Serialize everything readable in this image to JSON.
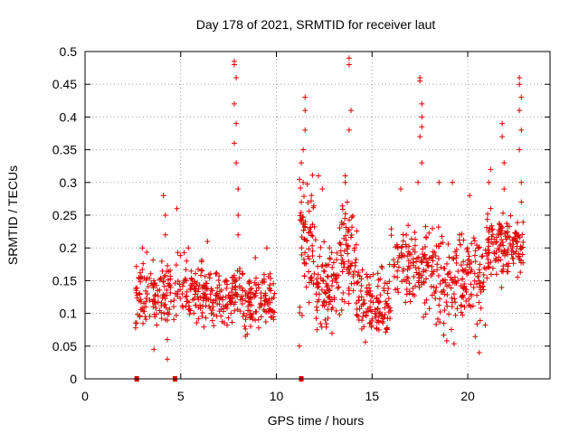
{
  "chart_data": {
    "type": "scatter",
    "title": "Day 178 of 2021, SRMTID for receiver laut",
    "xlabel": "GPS time / hours",
    "ylabel": "SRMTID / TECUs",
    "xlim": [
      0,
      24.3
    ],
    "ylim": [
      0,
      0.5
    ],
    "x_ticks": [
      0,
      5,
      10,
      15,
      20
    ],
    "y_ticks": [
      0,
      0.05,
      0.1,
      0.15,
      0.2,
      0.25,
      0.3,
      0.35,
      0.4,
      0.45,
      0.5
    ],
    "grid": true,
    "marker": "plus",
    "color": "#e00000",
    "zero_points": [
      2.7,
      4.7,
      11.3
    ],
    "clusters": [
      {
        "x_range": [
          2.6,
          4.5
        ],
        "y_range": [
          0.06,
          0.2
        ],
        "count": 120,
        "spikes": [
          [
            3.0,
            0.2
          ],
          [
            4.1,
            0.28
          ],
          [
            4.2,
            0.25
          ],
          [
            4.2,
            0.22
          ],
          [
            4.3,
            0.06
          ],
          [
            4.3,
            0.03
          ],
          [
            3.6,
            0.045
          ]
        ]
      },
      {
        "x_range": [
          4.6,
          6.2
        ],
        "y_range": [
          0.06,
          0.21
        ],
        "count": 90,
        "spikes": [
          [
            4.8,
            0.26
          ],
          [
            5.4,
            0.2
          ]
        ]
      },
      {
        "x_range": [
          6.2,
          7.6
        ],
        "y_range": [
          0.06,
          0.19
        ],
        "count": 85,
        "spikes": [
          [
            6.4,
            0.21
          ]
        ]
      },
      {
        "x_range": [
          7.6,
          8.2
        ],
        "y_range": [
          0.07,
          0.2
        ],
        "count": 40,
        "spikes": [
          [
            7.8,
            0.485
          ],
          [
            7.8,
            0.48
          ],
          [
            7.9,
            0.46
          ],
          [
            7.8,
            0.42
          ],
          [
            7.9,
            0.39
          ],
          [
            7.8,
            0.36
          ],
          [
            7.9,
            0.33
          ],
          [
            8.0,
            0.29
          ],
          [
            8.0,
            0.25
          ],
          [
            8.0,
            0.22
          ]
        ]
      },
      {
        "x_range": [
          8.2,
          9.9
        ],
        "y_range": [
          0.05,
          0.19
        ],
        "count": 110,
        "spikes": [
          [
            9.5,
            0.2
          ],
          [
            8.9,
            0.185
          ]
        ]
      },
      {
        "x_range": [
          11.2,
          12.0
        ],
        "y_range": [
          0.07,
          0.35
        ],
        "count": 70,
        "spikes": [
          [
            11.5,
            0.43
          ],
          [
            11.5,
            0.41
          ],
          [
            11.5,
            0.38
          ],
          [
            11.4,
            0.35
          ],
          [
            11.3,
            0.33
          ],
          [
            11.4,
            0.3
          ],
          [
            11.2,
            0.05
          ]
        ]
      },
      {
        "x_range": [
          12.0,
          13.3
        ],
        "y_range": [
          0.04,
          0.25
        ],
        "count": 90,
        "spikes": [
          [
            12.2,
            0.31
          ],
          [
            12.4,
            0.29
          ]
        ]
      },
      {
        "x_range": [
          13.3,
          14.2
        ],
        "y_range": [
          0.06,
          0.3
        ],
        "count": 70,
        "spikes": [
          [
            13.8,
            0.49
          ],
          [
            13.8,
            0.48
          ],
          [
            13.9,
            0.41
          ],
          [
            13.8,
            0.38
          ],
          [
            13.6,
            0.31
          ],
          [
            13.6,
            0.3
          ],
          [
            13.7,
            0.27
          ]
        ]
      },
      {
        "x_range": [
          14.2,
          16.0
        ],
        "y_range": [
          0.04,
          0.2
        ],
        "count": 120,
        "spikes": []
      },
      {
        "x_range": [
          16.0,
          18.2
        ],
        "y_range": [
          0.08,
          0.26
        ],
        "count": 130,
        "spikes": [
          [
            17.5,
            0.46
          ],
          [
            17.5,
            0.455
          ],
          [
            17.6,
            0.42
          ],
          [
            17.6,
            0.4
          ],
          [
            17.6,
            0.385
          ],
          [
            17.5,
            0.37
          ],
          [
            17.6,
            0.33
          ],
          [
            17.4,
            0.3
          ],
          [
            16.5,
            0.29
          ]
        ]
      },
      {
        "x_range": [
          18.2,
          19.9
        ],
        "y_range": [
          0.04,
          0.25
        ],
        "count": 110,
        "spikes": [
          [
            18.5,
            0.3
          ],
          [
            19.2,
            0.3
          ]
        ]
      },
      {
        "x_range": [
          19.9,
          21.0
        ],
        "y_range": [
          0.05,
          0.26
        ],
        "count": 70,
        "spikes": [
          [
            20.1,
            0.28
          ],
          [
            20.6,
            0.04
          ]
        ]
      },
      {
        "x_range": [
          21.0,
          21.9
        ],
        "y_range": [
          0.12,
          0.28
        ],
        "count": 70,
        "spikes": [
          [
            21.1,
            0.3
          ],
          [
            21.2,
            0.32
          ],
          [
            21.8,
            0.39
          ],
          [
            21.8,
            0.37
          ],
          [
            21.9,
            0.33
          ],
          [
            21.9,
            0.29
          ]
        ]
      },
      {
        "x_range": [
          21.9,
          22.9
        ],
        "y_range": [
          0.14,
          0.27
        ],
        "count": 70,
        "spikes": [
          [
            22.7,
            0.46
          ],
          [
            22.7,
            0.45
          ],
          [
            22.8,
            0.43
          ],
          [
            22.7,
            0.41
          ],
          [
            22.8,
            0.38
          ],
          [
            22.7,
            0.35
          ],
          [
            22.8,
            0.3
          ],
          [
            22.8,
            0.27
          ]
        ]
      }
    ]
  }
}
